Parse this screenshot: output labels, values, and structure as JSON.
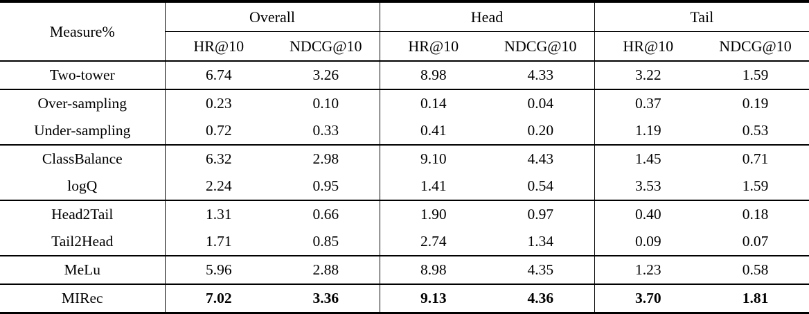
{
  "table": {
    "corner_header": "Measure%",
    "groups": [
      {
        "label": "Overall"
      },
      {
        "label": "Head"
      },
      {
        "label": "Tail"
      }
    ],
    "metric_headers": [
      "HR@10",
      "NDCG@10",
      "HR@10",
      "NDCG@10",
      "HR@10",
      "NDCG@10"
    ],
    "rows": [
      {
        "method": "Two-tower",
        "values": [
          "6.74",
          "3.26",
          "8.98",
          "4.33",
          "3.22",
          "1.59"
        ]
      },
      {
        "method": "Over-sampling",
        "values": [
          "0.23",
          "0.10",
          "0.14",
          "0.04",
          "0.37",
          "0.19"
        ]
      },
      {
        "method": "Under-sampling",
        "values": [
          "0.72",
          "0.33",
          "0.41",
          "0.20",
          "1.19",
          "0.53"
        ]
      },
      {
        "method": "ClassBalance",
        "values": [
          "6.32",
          "2.98",
          "9.10",
          "4.43",
          "1.45",
          "0.71"
        ]
      },
      {
        "method": "logQ",
        "values": [
          "2.24",
          "0.95",
          "1.41",
          "0.54",
          "3.53",
          "1.59"
        ]
      },
      {
        "method": "Head2Tail",
        "values": [
          "1.31",
          "0.66",
          "1.90",
          "0.97",
          "0.40",
          "0.18"
        ]
      },
      {
        "method": "Tail2Head",
        "values": [
          "1.71",
          "0.85",
          "2.74",
          "1.34",
          "0.09",
          "0.07"
        ]
      },
      {
        "method": "MeLu",
        "values": [
          "5.96",
          "2.88",
          "8.98",
          "4.35",
          "1.23",
          "0.58"
        ]
      },
      {
        "method": "MIRec",
        "values": [
          "7.02",
          "3.36",
          "9.13",
          "4.36",
          "3.70",
          "1.81"
        ],
        "bold_values": true
      }
    ],
    "colors": {
      "border": "#000000",
      "text": "#000000",
      "background": "#ffffff"
    }
  }
}
